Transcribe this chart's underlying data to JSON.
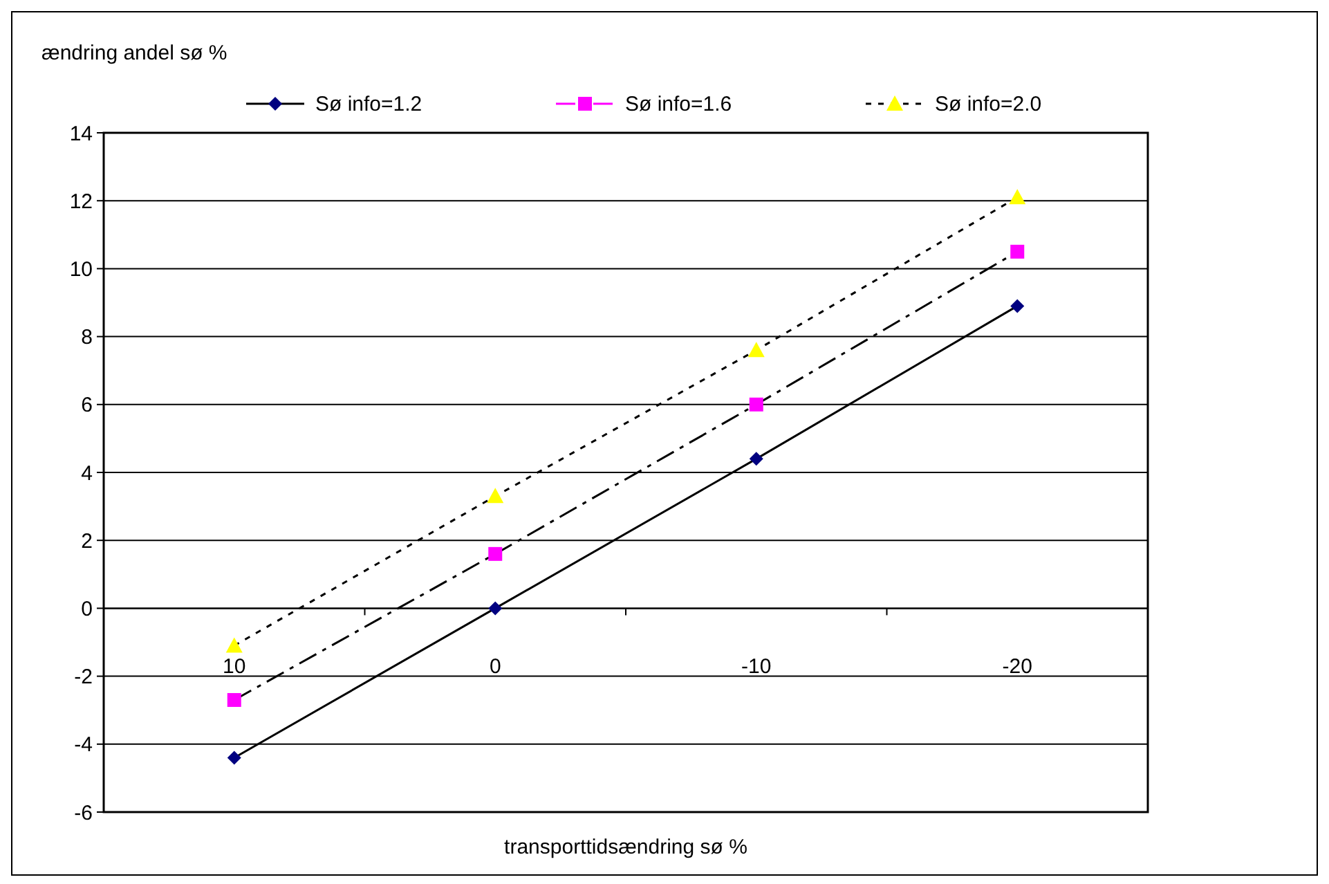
{
  "chart_data": {
    "type": "line",
    "ylabel": "ændring andel sø %",
    "xlabel": "transporttidsændring sø %",
    "categories": [
      "10",
      "0",
      "-10",
      "-20"
    ],
    "series": [
      {
        "name": "Sø info=1.2",
        "color": "#000080",
        "marker": "diamond",
        "line_style": "solid",
        "values": [
          -4.4,
          0,
          4.4,
          8.9
        ]
      },
      {
        "name": "Sø info=1.6",
        "color": "#ff00ff",
        "marker": "square",
        "line_style": "dashed",
        "values": [
          -2.7,
          1.6,
          6.0,
          10.5
        ]
      },
      {
        "name": "Sø info=2.0",
        "color": "#ffff00",
        "marker": "triangle",
        "line_style": "dotted",
        "values": [
          -1.1,
          3.3,
          7.6,
          12.1
        ]
      }
    ],
    "ylim": [
      -6,
      14
    ],
    "yticks": [
      -6,
      -4,
      -2,
      0,
      2,
      4,
      6,
      8,
      10,
      12,
      14
    ],
    "grid": "y",
    "legend": "top"
  }
}
